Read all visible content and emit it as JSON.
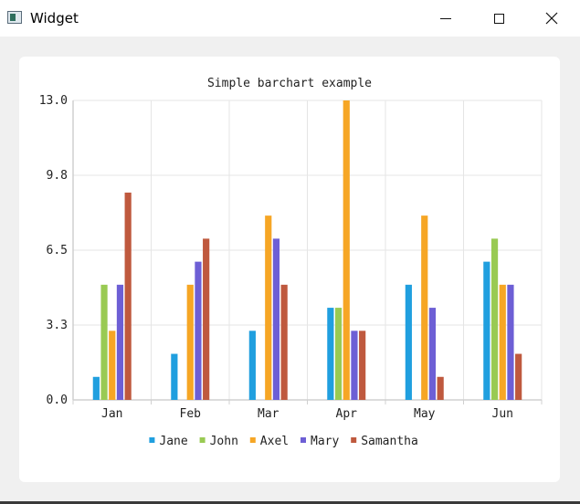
{
  "window": {
    "title": "Widget",
    "icon": "window-app-icon",
    "controls": {
      "minimize": "minimize-icon",
      "maximize": "maximize-icon",
      "close": "close-icon"
    }
  },
  "colors": {
    "Jane": "#209fdf",
    "John": "#99ca53",
    "Axel": "#f6a625",
    "Mary": "#6d5fd5",
    "Samantha": "#bf593e",
    "grid": "#e5e5e5",
    "axis": "#d0d0d0"
  },
  "chart_data": {
    "type": "bar",
    "title": "Simple barchart example",
    "categories": [
      "Jan",
      "Feb",
      "Mar",
      "Apr",
      "May",
      "Jun"
    ],
    "series": [
      {
        "name": "Jane",
        "values": [
          1,
          2,
          3,
          4,
          5,
          6
        ]
      },
      {
        "name": "John",
        "values": [
          5,
          0,
          0,
          4,
          0,
          7
        ]
      },
      {
        "name": "Axel",
        "values": [
          3,
          5,
          8,
          13,
          8,
          5
        ]
      },
      {
        "name": "Mary",
        "values": [
          5,
          6,
          7,
          3,
          4,
          5
        ]
      },
      {
        "name": "Samantha",
        "values": [
          9,
          7,
          5,
          3,
          1,
          2
        ]
      }
    ],
    "ylim": [
      0,
      13
    ],
    "yticks": [
      "0.0",
      "3.3",
      "6.5",
      "9.8",
      "13.0"
    ],
    "grid": true,
    "legend_position": "bottom"
  }
}
